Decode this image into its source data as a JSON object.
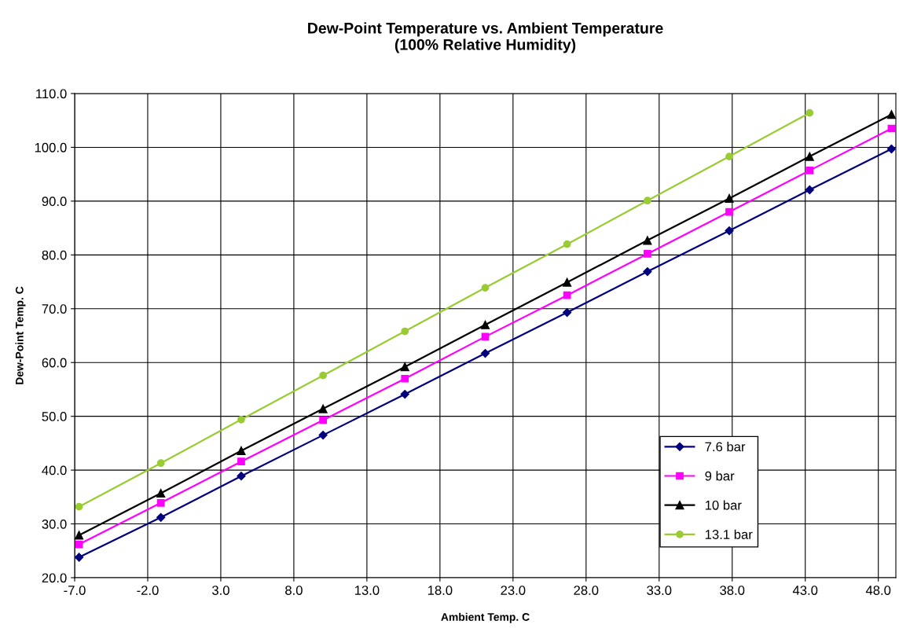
{
  "chart_data": {
    "type": "line",
    "title": "Dew-Point Temperature vs. Ambient Temperature\n(100% Relative Humidity)",
    "xlabel": "Ambient Temp. C",
    "ylabel": "Dew-Point Temp. C",
    "x": [
      -6.7,
      -1.1,
      4.4,
      10.0,
      15.6,
      21.1,
      26.7,
      32.2,
      37.8,
      43.3,
      48.9
    ],
    "series": [
      {
        "name": "7.6 bar",
        "color": "#000080",
        "marker": "diamond",
        "values": [
          23.8,
          31.2,
          38.9,
          46.5,
          54.1,
          61.7,
          69.3,
          76.9,
          84.5,
          92.1,
          99.7
        ]
      },
      {
        "name": "9 bar",
        "color": "#ff00ff",
        "marker": "square",
        "values": [
          26.2,
          33.9,
          41.6,
          49.3,
          57.0,
          64.8,
          72.5,
          80.2,
          88.0,
          95.7,
          103.5
        ]
      },
      {
        "name": "10 bar",
        "color": "#000000",
        "marker": "triangle",
        "values": [
          27.9,
          35.7,
          43.6,
          51.4,
          59.2,
          67.0,
          74.9,
          82.7,
          90.5,
          98.3,
          106.1
        ]
      },
      {
        "name": "13.1 bar",
        "color": "#99cc33",
        "marker": "circle",
        "values": [
          33.2,
          41.3,
          49.4,
          57.6,
          65.8,
          73.9,
          82.0,
          90.1,
          98.3,
          106.4,
          null
        ]
      }
    ],
    "xlim": [
      -7,
      49.2
    ],
    "xticks": [
      {
        "value": -7,
        "label": "-7.0"
      },
      {
        "value": -2,
        "label": "-2.0"
      },
      {
        "value": 3,
        "label": "3.0"
      },
      {
        "value": 8,
        "label": "8.0"
      },
      {
        "value": 13,
        "label": "13.0"
      },
      {
        "value": 18,
        "label": "18.0"
      },
      {
        "value": 23,
        "label": "23.0"
      },
      {
        "value": 28,
        "label": "28.0"
      },
      {
        "value": 33,
        "label": "33.0"
      },
      {
        "value": 38,
        "label": "38.0"
      },
      {
        "value": 43,
        "label": "43.0"
      },
      {
        "value": 48,
        "label": "48.0"
      }
    ],
    "ylim": [
      20,
      110
    ],
    "yticks": [
      {
        "value": 20,
        "label": "20.0"
      },
      {
        "value": 30,
        "label": "30.0"
      },
      {
        "value": 40,
        "label": "40.0"
      },
      {
        "value": 50,
        "label": "50.0"
      },
      {
        "value": 60,
        "label": "60.0"
      },
      {
        "value": 70,
        "label": "70.0"
      },
      {
        "value": 80,
        "label": "80.0"
      },
      {
        "value": 90,
        "label": "90.0"
      },
      {
        "value": 100,
        "label": "100.0"
      },
      {
        "value": 110,
        "label": "110.0"
      }
    ],
    "grid": true,
    "legend": "bottom right",
    "line_style": "solid"
  }
}
